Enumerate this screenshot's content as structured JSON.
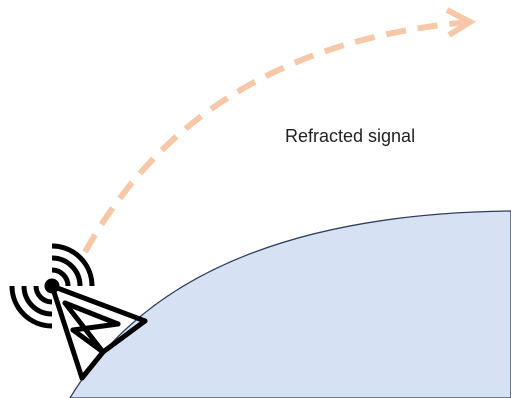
{
  "diagram": {
    "label": "Refracted signal",
    "colors": {
      "earth_fill": "#d6e1f3",
      "earth_stroke": "#2f3e5c",
      "signal_path": "#f7c8a8",
      "tower": "#000000"
    },
    "icons": [
      "radio-tower-icon",
      "signal-waves-icon"
    ]
  }
}
